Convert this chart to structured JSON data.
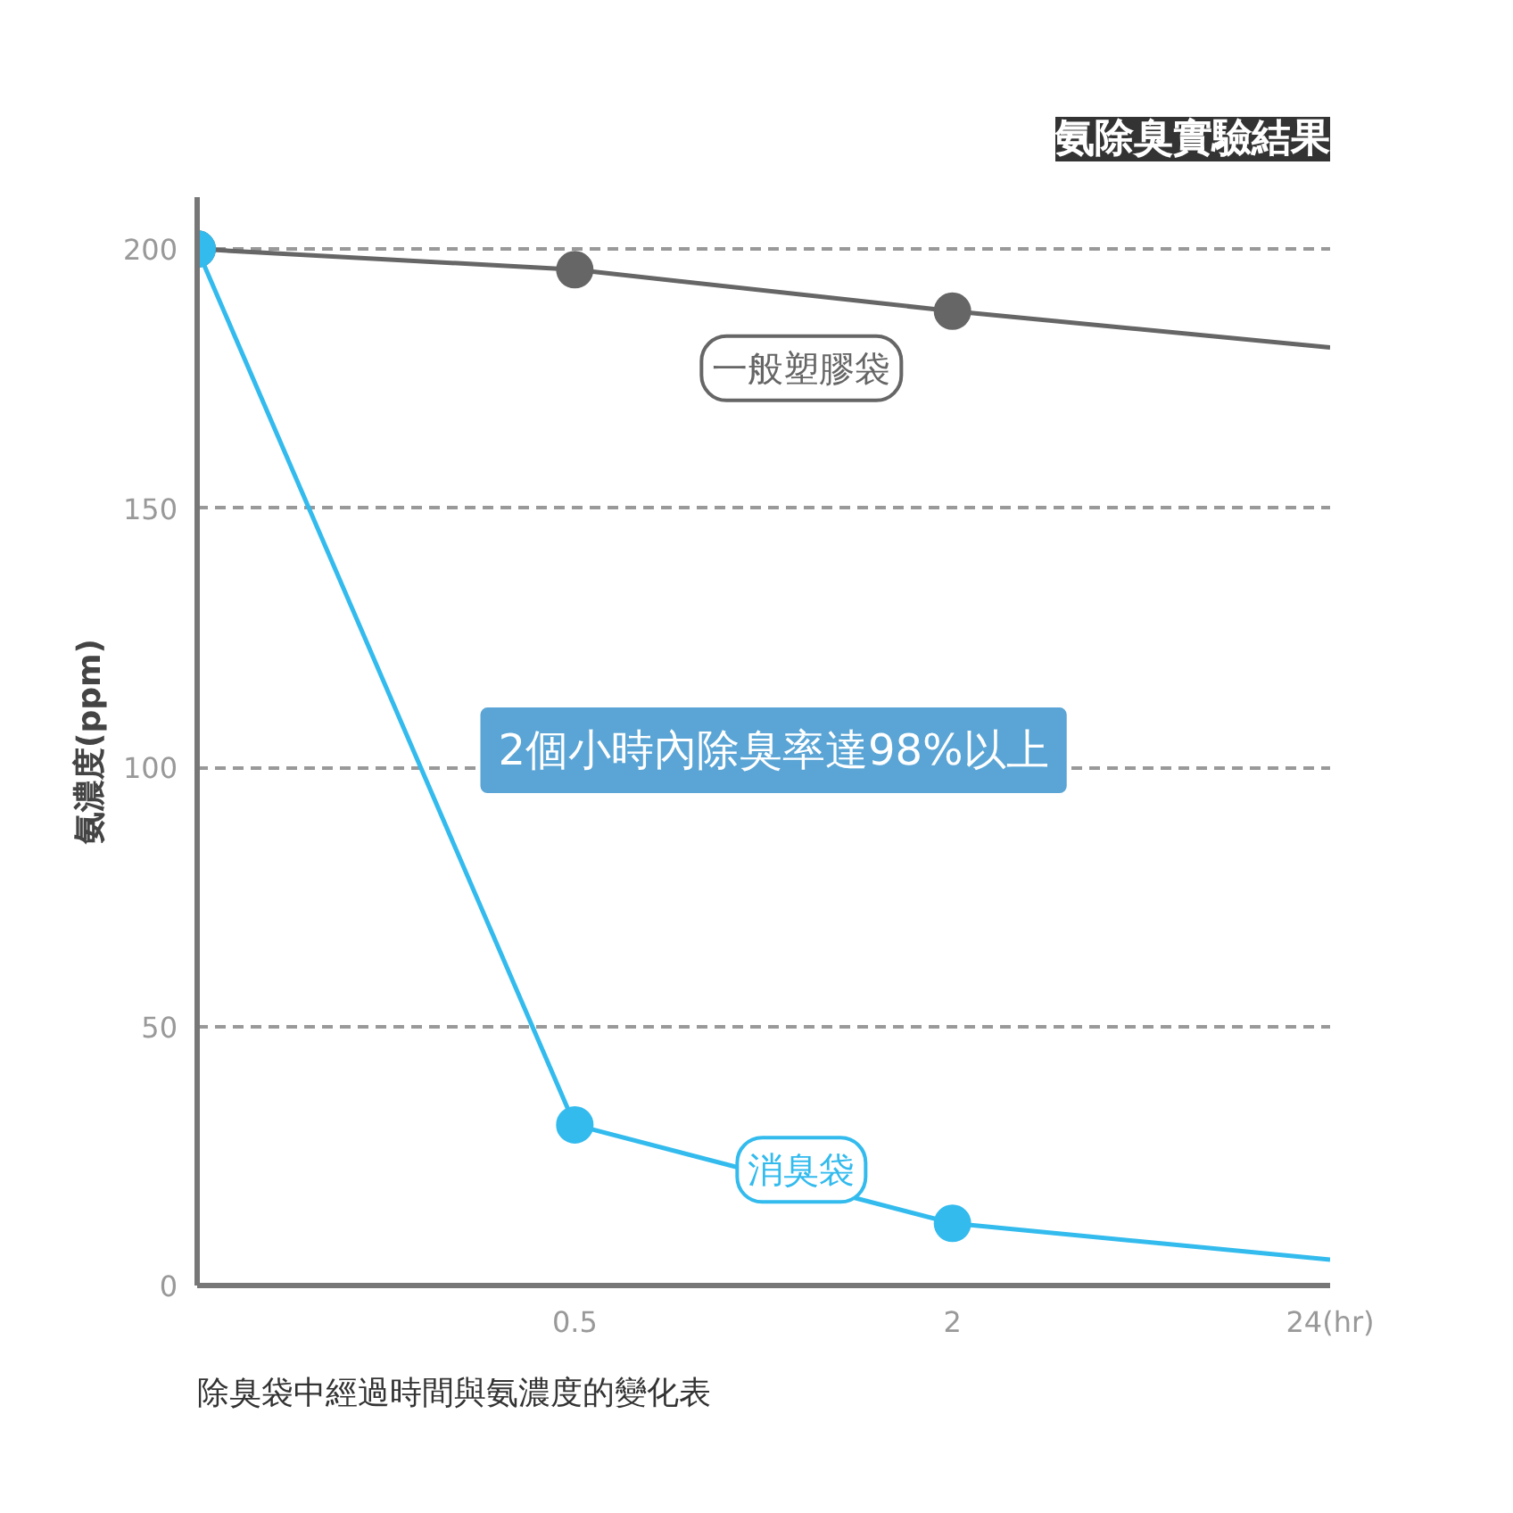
{
  "chart_data": {
    "type": "line",
    "title": "氨除臭實驗結果",
    "ylabel": "氨濃度(ppm)",
    "categories": [
      null,
      "0.5",
      "2",
      "24(hr)"
    ],
    "series": [
      {
        "name": "一般塑膠袋",
        "color": "#666666",
        "values": [
          200,
          196,
          188,
          181
        ]
      },
      {
        "name": "消臭袋",
        "color": "#33bbee",
        "values": [
          200,
          31,
          12,
          5
        ]
      }
    ],
    "ylim": [
      0,
      210
    ],
    "yticks": [
      0,
      50,
      100,
      150,
      200
    ],
    "grid": "y",
    "marker": "circle",
    "annotations": [
      "2個小時內除臭率達98%以上",
      "除臭袋中經過時間與氨濃度的變化表"
    ]
  }
}
